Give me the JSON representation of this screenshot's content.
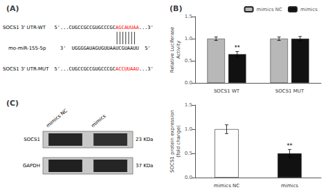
{
  "chart_data": [
    {
      "type": "sequence",
      "title": "(A)",
      "rows": [
        {
          "label": "SOCS1 3' UTR-WT",
          "parts": [
            {
              "text": "5'...CUGCCGCCGUGCCCGC"
            },
            {
              "text": "AGCAUUAA",
              "color": "red"
            },
            {
              "text": "...3'"
            }
          ]
        },
        {
          "label": "mo-miR-155-5p",
          "parts": [
            {
              "text": "3'  UGGGGAUAGUGUUAAUCGUAAUU  5'"
            }
          ]
        },
        {
          "label": "SOCS1 3' UTR-MUT",
          "parts": [
            {
              "text": "5'...CUGCCGCCGUGCCCGC"
            },
            {
              "text": "ACCUUAAU",
              "color": "red"
            },
            {
              "text": "...3'"
            }
          ]
        }
      ],
      "binding_lines": 7
    },
    {
      "type": "bar",
      "title": "(B)",
      "categories": [
        "SOCS1 WT",
        "SOCS1 MUT"
      ],
      "series": [
        {
          "name": "mimics NC",
          "color": "#b8b8b8",
          "values": [
            1.0,
            1.0
          ],
          "errors": [
            0.04,
            0.04
          ]
        },
        {
          "name": "mimics",
          "color": "#111111",
          "values": [
            0.65,
            1.0
          ],
          "errors": [
            0.06,
            0.05
          ]
        }
      ],
      "ylabel": "Relative Luciferase\nActivity",
      "ylim": [
        0.0,
        1.5
      ],
      "yticks": [
        {
          "value": 0.0,
          "label": "0.0"
        },
        0.5,
        {
          "value": 1.0,
          "label": "1.0"
        },
        1.5
      ],
      "grid": false,
      "legend": "upper right",
      "annotations": [
        {
          "text": "**",
          "category": "SOCS1 WT",
          "series": "mimics"
        }
      ]
    },
    {
      "type": "bar",
      "categories": [
        "mimics NC",
        "mimics"
      ],
      "values": [
        1.0,
        0.5
      ],
      "errors": [
        0.09,
        0.08
      ],
      "colors": [
        "#ffffff",
        "#111111"
      ],
      "ylabel": "SOCS1 protein expression\n(fold change)",
      "ylim": [
        0.0,
        1.5
      ],
      "yticks": [
        {
          "value": 0.0,
          "label": "0.0"
        },
        0.5,
        {
          "value": 1.0,
          "label": "1.0"
        },
        1.5
      ],
      "grid": false,
      "annotations": [
        {
          "text": "**",
          "category": "mimics"
        }
      ]
    },
    {
      "type": "blot",
      "title": "(C)",
      "categories": [
        "mimics NC",
        "mimics"
      ],
      "color": "#c8c8c8",
      "series": [
        {
          "name": "SOCS1",
          "label": "23 KDa",
          "colors": [
            "#252525",
            "#303030"
          ]
        },
        {
          "name": "GAPDH",
          "label": "37 KDa",
          "colors": [
            "#202020",
            "#252525"
          ]
        }
      ]
    }
  ]
}
